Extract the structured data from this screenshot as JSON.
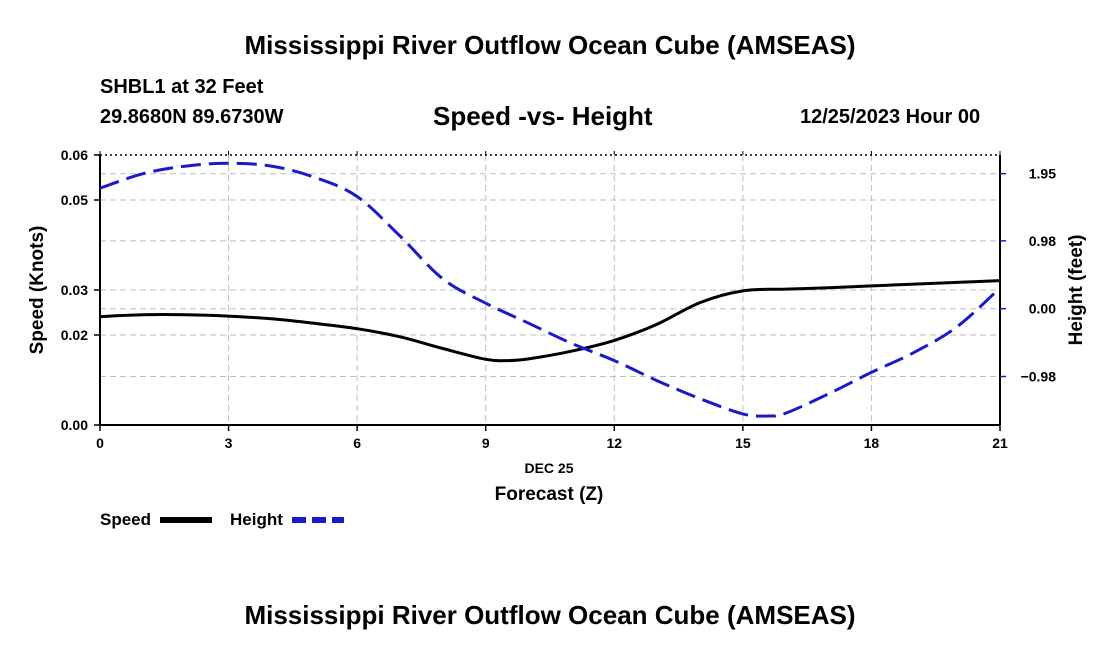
{
  "header": {
    "title": "Mississippi River Outflow Ocean Cube (AMSEAS)",
    "station": "SHBL1 at 32 Feet",
    "coords": "29.8680N  89.6730W",
    "subtitle": "Speed -vs- Height",
    "datetime": "12/25/2023 Hour 00"
  },
  "footer": {
    "title": "Mississippi River Outflow Ocean Cube (AMSEAS)"
  },
  "legend": {
    "speed_label": "Speed",
    "height_label": "Height"
  },
  "colors": {
    "speed": "#000000",
    "height": "#1a1acc",
    "grid": "#bdbdbd"
  },
  "chart_data": {
    "type": "line",
    "title": "Speed -vs- Height",
    "xlabel": "Forecast (Z)",
    "xlabel_date": "DEC 25",
    "ylabel": "Speed (Knots)",
    "y2label": "Height (feet)",
    "xlim": [
      0,
      21
    ],
    "ylim": [
      0,
      0.06
    ],
    "y2lim": [
      -1.68,
      2.22
    ],
    "x_ticks": [
      0,
      3,
      6,
      9,
      12,
      15,
      18,
      21
    ],
    "x_tick_labels": [
      "0",
      "3",
      "6",
      "9",
      "12",
      "15",
      "18",
      "21"
    ],
    "y_ticks": [
      0,
      0.02,
      0.03,
      0.05,
      0.06
    ],
    "y_tick_labels": [
      "0.00",
      "0.02",
      "0.03",
      "0.05",
      "0.06"
    ],
    "y2_ticks": [
      -0.98,
      0.0,
      0.98,
      1.95
    ],
    "y2_tick_labels": [
      "−0.98",
      "0.00",
      "0.98",
      "1.95"
    ],
    "grid": true,
    "legend_position": "bottom-left",
    "series": [
      {
        "name": "Speed",
        "axis": "left",
        "style": "solid",
        "x": [
          0,
          1,
          2,
          3,
          4,
          5,
          6,
          7,
          8,
          9,
          9.5,
          10,
          11,
          12,
          13,
          14,
          15,
          16,
          17,
          18,
          19,
          20,
          21
        ],
        "values": [
          0.0241,
          0.0245,
          0.0245,
          0.0242,
          0.0236,
          0.0226,
          0.0214,
          0.0196,
          0.017,
          0.0146,
          0.0143,
          0.0147,
          0.0164,
          0.0188,
          0.0224,
          0.0272,
          0.0298,
          0.0302,
          0.0305,
          0.0309,
          0.0313,
          0.0317,
          0.0321
        ]
      },
      {
        "name": "Height",
        "axis": "right",
        "style": "dashed",
        "x": [
          0,
          1,
          2,
          3,
          4,
          5,
          6,
          7,
          8,
          9,
          10,
          11,
          12,
          13,
          14,
          15,
          15.6,
          16,
          17,
          18,
          19,
          20,
          21
        ],
        "values": [
          1.74,
          1.95,
          2.06,
          2.1,
          2.06,
          1.9,
          1.62,
          1.05,
          0.43,
          0.08,
          -0.21,
          -0.5,
          -0.75,
          -1.04,
          -1.3,
          -1.52,
          -1.55,
          -1.51,
          -1.23,
          -0.92,
          -0.63,
          -0.26,
          0.3
        ]
      }
    ]
  }
}
